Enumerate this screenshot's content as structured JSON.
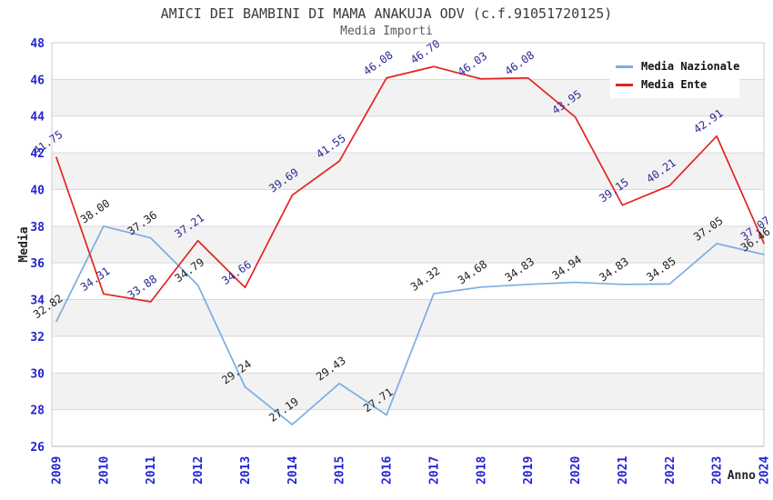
{
  "title": "AMICI DEI BAMBINI DI MAMA ANAKUJA ODV (c.f.91051720125)",
  "subtitle": "Media Importi",
  "legend": {
    "position": "top-right",
    "items": [
      {
        "label": "Media Nazionale"
      },
      {
        "label": "Media Ente"
      }
    ]
  },
  "chart_data": {
    "type": "line",
    "x": [
      2009,
      2010,
      2011,
      2012,
      2013,
      2014,
      2015,
      2016,
      2017,
      2018,
      2019,
      2020,
      2021,
      2022,
      2023,
      2024
    ],
    "series": [
      {
        "name": "Media Nazionale",
        "color": "#7aade2",
        "label_color": "#222222",
        "values": [
          32.82,
          38.0,
          37.36,
          34.79,
          29.24,
          27.19,
          29.43,
          27.71,
          34.32,
          34.68,
          34.83,
          34.94,
          34.83,
          34.85,
          37.05,
          36.46
        ]
      },
      {
        "name": "Media Ente",
        "color": "#e42320",
        "label_color": "#2b2b94",
        "values": [
          41.75,
          34.31,
          33.88,
          37.21,
          34.66,
          39.69,
          41.55,
          46.08,
          46.7,
          46.03,
          46.08,
          43.95,
          39.15,
          40.21,
          42.91,
          37.07
        ]
      }
    ],
    "xlabel": "Anno",
    "ylabel": "Media",
    "ylim": [
      26,
      48
    ],
    "yticks": [
      26,
      28,
      30,
      32,
      34,
      36,
      38,
      40,
      42,
      44,
      46,
      48
    ],
    "grid": true,
    "plot_bands_alternating": true,
    "value_label_decimals": 2,
    "legend_position": "top-right",
    "colors": {
      "axis_text": "#2424d2",
      "grid": "#d9d9d9",
      "border": "#cccccc",
      "bottom_axis": "#b5b5b5",
      "band": "#f2f2f2",
      "axis_title": "#222222",
      "title": "#3a3a3a",
      "subtitle": "#5a5a5a"
    }
  }
}
